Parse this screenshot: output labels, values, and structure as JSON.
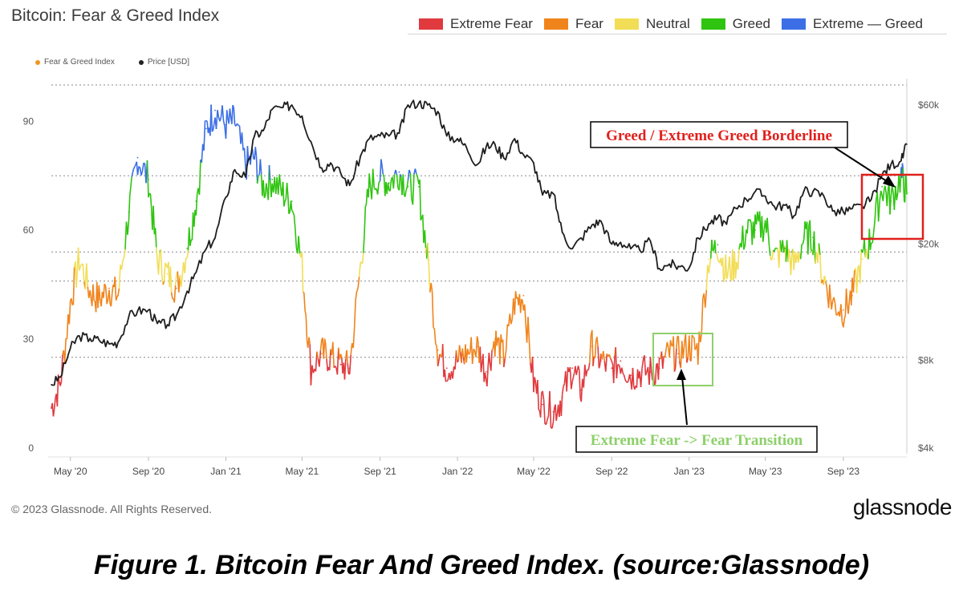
{
  "header": {
    "title": "Bitcoin: Fear & Greed Index"
  },
  "legend": [
    {
      "label": "Extreme Fear",
      "color": "#e03a3e"
    },
    {
      "label": "Fear",
      "color": "#f0841c"
    },
    {
      "label": "Neutral",
      "color": "#f2dd57"
    },
    {
      "label": "Greed",
      "color": "#2ec40f"
    },
    {
      "label": "Extreme — Greed",
      "color": "#3c6fe6"
    }
  ],
  "series_legend": [
    {
      "label": "Fear & Greed Index",
      "color": "#f0961e"
    },
    {
      "label": "Price [USD]",
      "color": "#222222"
    }
  ],
  "chart_data": {
    "type": "line",
    "left_axis": {
      "ticks": [
        "0",
        "30",
        "60",
        "90"
      ],
      "ylim": [
        0,
        100
      ]
    },
    "right_axis": {
      "ticks": [
        "$4k",
        "$8k",
        "$20k",
        "$60k"
      ],
      "scale": "log"
    },
    "x_ticks": [
      "May '20",
      "Sep '20",
      "Jan '21",
      "May '21",
      "Sep '21",
      "Jan '22",
      "May '22",
      "Sep '22",
      "Jan '23",
      "May '23",
      "Sep '23"
    ],
    "zones": [
      {
        "name": "Extreme Fear",
        "min": 0,
        "max": 25,
        "color": "#e03a3e"
      },
      {
        "name": "Fear",
        "min": 25,
        "max": 46,
        "color": "#f0841c"
      },
      {
        "name": "Neutral",
        "min": 46,
        "max": 54,
        "color": "#f2dd57"
      },
      {
        "name": "Greed",
        "min": 54,
        "max": 75,
        "color": "#2ec40f"
      },
      {
        "name": "Extreme — Greed",
        "min": 75,
        "max": 100,
        "color": "#3c6fe6"
      }
    ],
    "series": [
      {
        "name": "Fear & Greed Index",
        "x": [
          "2020-04-01",
          "2020-04-15",
          "2020-05-01",
          "2020-05-15",
          "2020-06-01",
          "2020-06-15",
          "2020-07-01",
          "2020-07-15",
          "2020-08-01",
          "2020-08-15",
          "2020-09-01",
          "2020-09-15",
          "2020-10-01",
          "2020-10-15",
          "2020-11-01",
          "2020-11-15",
          "2020-12-01",
          "2020-12-15",
          "2021-01-01",
          "2021-01-15",
          "2021-02-01",
          "2021-02-15",
          "2021-03-01",
          "2021-03-15",
          "2021-04-01",
          "2021-04-15",
          "2021-05-01",
          "2021-05-15",
          "2021-06-01",
          "2021-06-15",
          "2021-07-01",
          "2021-07-15",
          "2021-08-01",
          "2021-08-15",
          "2021-09-01",
          "2021-09-15",
          "2021-10-01",
          "2021-10-15",
          "2021-11-01",
          "2021-11-15",
          "2021-12-01",
          "2021-12-15",
          "2022-01-01",
          "2022-01-15",
          "2022-02-01",
          "2022-02-15",
          "2022-03-01",
          "2022-03-15",
          "2022-04-01",
          "2022-04-15",
          "2022-05-01",
          "2022-05-15",
          "2022-06-01",
          "2022-06-15",
          "2022-07-01",
          "2022-07-15",
          "2022-08-01",
          "2022-08-15",
          "2022-09-01",
          "2022-09-15",
          "2022-10-01",
          "2022-10-15",
          "2022-11-01",
          "2022-11-15",
          "2022-12-01",
          "2022-12-15",
          "2023-01-01",
          "2023-01-15",
          "2023-02-01",
          "2023-02-15",
          "2023-03-01",
          "2023-03-15",
          "2023-04-01",
          "2023-04-15",
          "2023-05-01",
          "2023-05-15",
          "2023-06-01",
          "2023-06-15",
          "2023-07-01",
          "2023-07-15",
          "2023-08-01",
          "2023-08-15",
          "2023-09-01",
          "2023-09-15",
          "2023-10-01",
          "2023-10-15",
          "2023-11-01",
          "2023-11-15",
          "2023-12-01",
          "2023-12-10"
        ],
        "values": [
          11,
          18,
          40,
          52,
          43,
          41,
          44,
          42,
          65,
          80,
          74,
          52,
          48,
          44,
          55,
          68,
          88,
          93,
          89,
          90,
          78,
          80,
          72,
          74,
          70,
          68,
          50,
          22,
          26,
          25,
          23,
          22,
          50,
          72,
          75,
          73,
          76,
          72,
          72,
          52,
          27,
          22,
          24,
          26,
          28,
          21,
          30,
          25,
          40,
          42,
          18,
          12,
          10,
          14,
          22,
          16,
          28,
          24,
          22,
          24,
          20,
          21,
          21,
          22,
          26,
          26,
          28,
          27,
          52,
          56,
          48,
          51,
          60,
          60,
          62,
          52,
          55,
          50,
          58,
          58,
          47,
          40,
          38,
          42,
          52,
          58,
          72,
          68,
          75,
          70
        ]
      },
      {
        "name": "Price [USD]",
        "x": [
          "2020-04-01",
          "2020-04-15",
          "2020-05-01",
          "2020-05-15",
          "2020-06-01",
          "2020-06-15",
          "2020-07-01",
          "2020-07-15",
          "2020-08-01",
          "2020-08-15",
          "2020-09-01",
          "2020-09-15",
          "2020-10-01",
          "2020-10-15",
          "2020-11-01",
          "2020-11-15",
          "2020-12-01",
          "2020-12-15",
          "2021-01-01",
          "2021-01-15",
          "2021-02-01",
          "2021-02-15",
          "2021-03-01",
          "2021-03-15",
          "2021-04-01",
          "2021-04-15",
          "2021-05-01",
          "2021-05-15",
          "2021-06-01",
          "2021-06-15",
          "2021-07-01",
          "2021-07-15",
          "2021-08-01",
          "2021-08-15",
          "2021-09-01",
          "2021-09-15",
          "2021-10-01",
          "2021-10-15",
          "2021-11-01",
          "2021-11-15",
          "2021-12-01",
          "2021-12-15",
          "2022-01-01",
          "2022-01-15",
          "2022-02-01",
          "2022-02-15",
          "2022-03-01",
          "2022-03-15",
          "2022-04-01",
          "2022-04-15",
          "2022-05-01",
          "2022-05-15",
          "2022-06-01",
          "2022-06-15",
          "2022-07-01",
          "2022-07-15",
          "2022-08-01",
          "2022-08-15",
          "2022-09-01",
          "2022-09-15",
          "2022-10-01",
          "2022-10-15",
          "2022-11-01",
          "2022-11-15",
          "2022-12-01",
          "2022-12-15",
          "2023-01-01",
          "2023-01-15",
          "2023-02-01",
          "2023-02-15",
          "2023-03-01",
          "2023-03-15",
          "2023-04-01",
          "2023-04-15",
          "2023-05-01",
          "2023-05-15",
          "2023-06-01",
          "2023-06-15",
          "2023-07-01",
          "2023-07-15",
          "2023-08-01",
          "2023-08-15",
          "2023-09-01",
          "2023-09-15",
          "2023-10-01",
          "2023-10-15",
          "2023-11-01",
          "2023-11-15",
          "2023-12-01",
          "2023-12-10"
        ],
        "values": [
          6600,
          7000,
          8800,
          9700,
          9500,
          9400,
          9100,
          9200,
          11300,
          11800,
          11900,
          10700,
          10600,
          11400,
          13800,
          16000,
          19300,
          21000,
          29000,
          36000,
          34000,
          47000,
          49000,
          58000,
          58800,
          60000,
          55000,
          45000,
          36500,
          38000,
          35000,
          31800,
          40000,
          46000,
          47000,
          47000,
          48000,
          60000,
          61000,
          60000,
          57000,
          47000,
          46000,
          43000,
          37500,
          43000,
          44000,
          39500,
          46000,
          40500,
          38000,
          29500,
          29800,
          22000,
          19300,
          21000,
          23300,
          24000,
          20000,
          20300,
          19300,
          19100,
          20500,
          16500,
          17100,
          16800,
          16600,
          21000,
          23500,
          24600,
          23400,
          26600,
          28500,
          30300,
          29200,
          27000,
          27200,
          25000,
          30500,
          30300,
          29300,
          26000,
          25800,
          26500,
          27000,
          28500,
          34500,
          37500,
          38600,
          44000
        ]
      }
    ]
  },
  "annotations": {
    "greed_label": "Greed / Extreme Greed Borderline",
    "fear_label": "Extreme Fear -> Fear Transition",
    "greed_color": "#e0201c",
    "fear_color": "#8dd06a"
  },
  "footer": {
    "copyright": "© 2023 Glassnode. All Rights Reserved.",
    "brand": "glassnode",
    "caption": "Figure 1.  Bitcoin Fear And Greed Index. (source:Glassnode)"
  }
}
